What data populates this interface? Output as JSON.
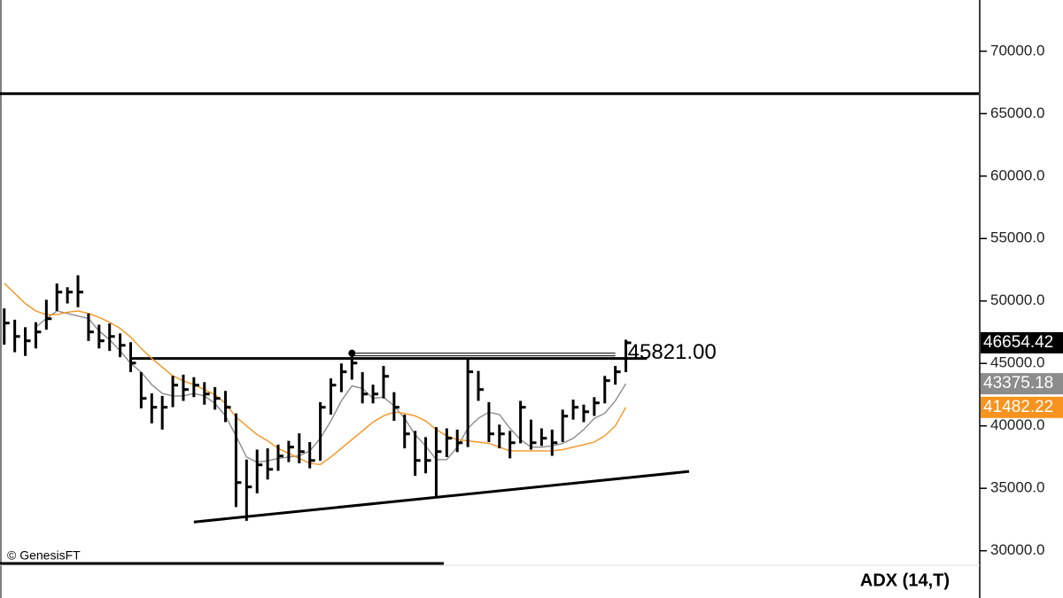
{
  "chart_data": {
    "type": "ohlc",
    "high": [
      49400,
      48500,
      47900,
      48300,
      50100,
      51400,
      51100,
      52060,
      49000,
      48100,
      48200,
      47400,
      46700,
      44300,
      42600,
      42400,
      44000,
      44100,
      43900,
      43500,
      43100,
      42800,
      41000,
      37300,
      38100,
      38200,
      38500,
      38800,
      39400,
      38700,
      41900,
      43800,
      45000,
      45821,
      44300,
      43300,
      44800,
      42700,
      40900,
      39600,
      39100,
      39900,
      39800,
      39700,
      45400,
      44400,
      41900,
      40100,
      39600,
      42000,
      40500,
      39800,
      39700,
      41300,
      42100,
      41700,
      42300,
      44000,
      44800,
      46900
    ],
    "low": [
      46500,
      45900,
      45600,
      46200,
      47700,
      49200,
      49800,
      49500,
      46800,
      46200,
      46000,
      45500,
      44300,
      41400,
      40200,
      39700,
      41500,
      42000,
      42300,
      41700,
      41300,
      40300,
      33500,
      32400,
      34600,
      35700,
      36400,
      37100,
      37000,
      36600,
      37200,
      40900,
      42700,
      43700,
      41800,
      41800,
      42200,
      40400,
      38200,
      36000,
      36200,
      34260,
      37500,
      37900,
      38300,
      42000,
      38700,
      38200,
      37400,
      38600,
      38100,
      38400,
      37600,
      38700,
      40500,
      40300,
      40800,
      41800,
      43300,
      44300
    ],
    "close": [
      48230,
      47160,
      46810,
      47520,
      48580,
      50710,
      50710,
      50710,
      47520,
      46810,
      47160,
      46450,
      45030,
      42200,
      41490,
      41490,
      43260,
      42910,
      43260,
      42550,
      42200,
      41490,
      35460,
      35110,
      36880,
      36520,
      37590,
      38300,
      37940,
      37230,
      41490,
      43260,
      44330,
      45030,
      42550,
      42550,
      43970,
      41490,
      39360,
      37230,
      37230,
      37940,
      39010,
      38650,
      44330,
      42910,
      39360,
      39360,
      38650,
      41490,
      38650,
      39010,
      38650,
      40780,
      41490,
      41130,
      41840,
      43620,
      44330,
      46654.42
    ],
    "color": "#000000",
    "lines": [
      {
        "color": "#8c8c8c",
        "values": [
          null,
          null,
          null,
          47900,
          48600,
          49200,
          49000,
          48800,
          48600,
          47600,
          46900,
          46000,
          45000,
          44300,
          43300,
          42600,
          42400,
          42400,
          42600,
          42400,
          41800,
          40800,
          39200,
          37500,
          37100,
          37200,
          37400,
          37500,
          37600,
          38000,
          39000,
          40400,
          42000,
          43200,
          43000,
          42200,
          42300,
          41600,
          40600,
          39300,
          38400,
          37300,
          37300,
          38300,
          39800,
          40600,
          41100,
          40900,
          39800,
          38900,
          38300,
          38300,
          38400,
          38600,
          39000,
          39700,
          40600,
          41000,
          42000,
          43375.18
        ]
      },
      {
        "color": "#f7931e",
        "values": [
          51420,
          50600,
          49800,
          49200,
          48900,
          48900,
          49100,
          49200,
          49000,
          48700,
          48300,
          47800,
          47100,
          46200,
          45400,
          44700,
          44000,
          43600,
          43300,
          42900,
          42500,
          41800,
          40700,
          40000,
          39300,
          38800,
          38200,
          37800,
          37400,
          37000,
          36900,
          37500,
          38200,
          38900,
          39600,
          40300,
          40800,
          41100,
          41000,
          40800,
          40400,
          39700,
          39200,
          38900,
          38800,
          38700,
          38600,
          38300,
          38000,
          38000,
          38000,
          38000,
          38000,
          38100,
          38300,
          38500,
          38700,
          39200,
          40000,
          41482.22
        ]
      }
    ],
    "hlines": [
      {
        "value": 66600,
        "x": [
          -0.4,
          92.5
        ]
      },
      {
        "value": 45400,
        "x": [
          12,
          61
        ]
      },
      {
        "value": 45821,
        "x": [
          33,
          58
        ],
        "label": "45821.00"
      }
    ],
    "trendline": {
      "x": [
        18,
        65
      ],
      "values": [
        32300,
        36350
      ]
    },
    "xlim": [
      -0.4,
      92.5
    ],
    "ylim": [
      28700,
      74100
    ],
    "yticks": [
      {
        "value": 30000,
        "label": "30000.0"
      },
      {
        "value": 35000,
        "label": "35000.0"
      },
      {
        "value": 40000,
        "label": "40000.0"
      },
      {
        "value": 45000,
        "label": "45000.0"
      },
      {
        "value": 50000,
        "label": "50000.0"
      },
      {
        "value": 55000,
        "label": "55000.0"
      },
      {
        "value": 60000,
        "label": "60000.0"
      },
      {
        "value": 65000,
        "label": "65000.0"
      },
      {
        "value": 70000,
        "label": "70000.0"
      }
    ],
    "copyright": "© GenesisFT",
    "indicator": "ADX (14,T)"
  }
}
